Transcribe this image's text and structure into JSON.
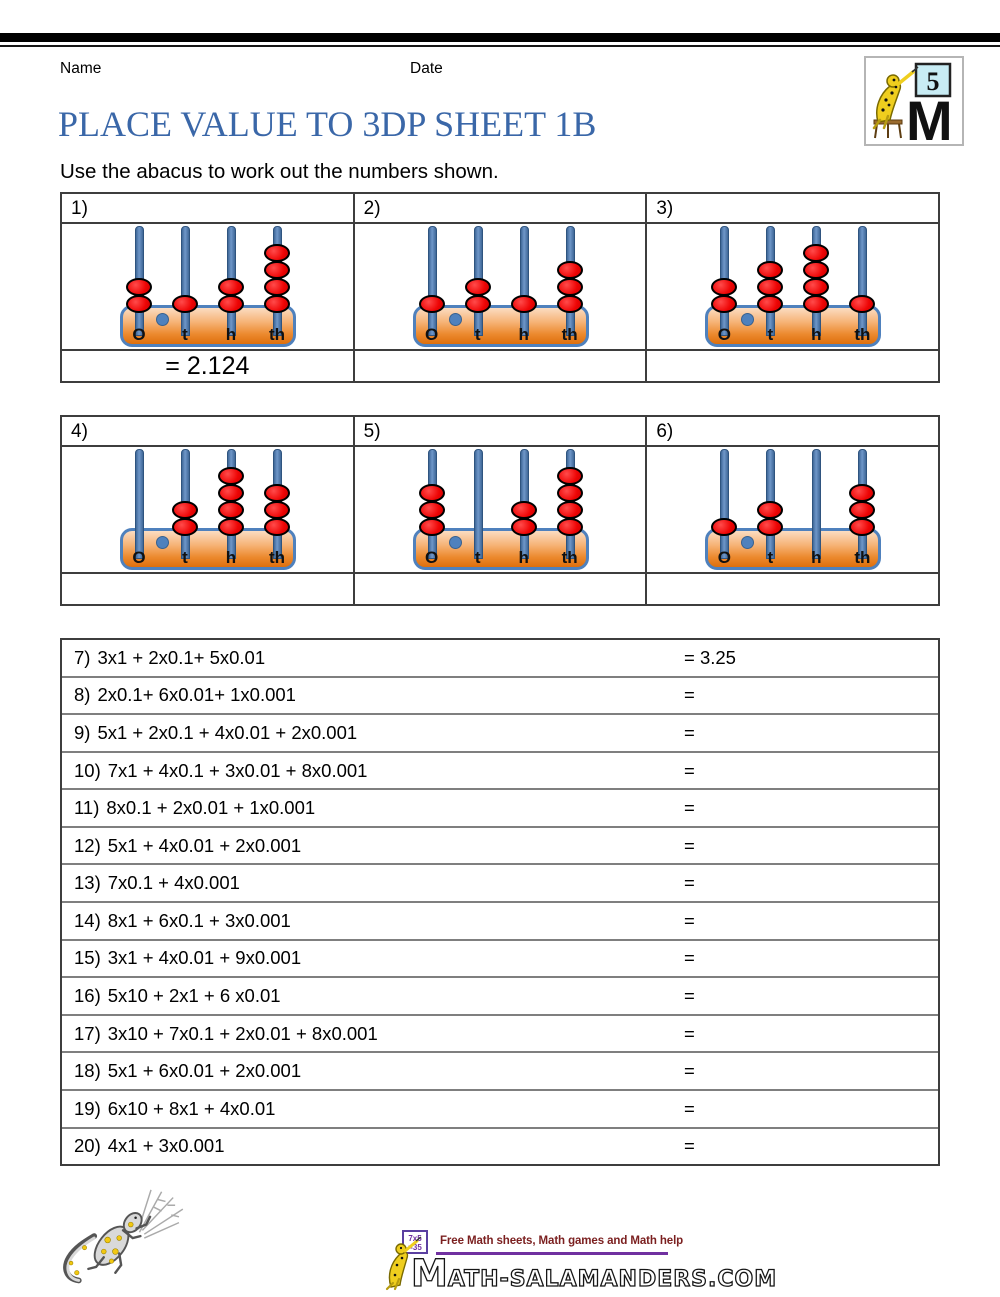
{
  "header": {
    "name_label": "Name",
    "date_label": "Date",
    "badge_number": "5"
  },
  "title": "PLACE VALUE TO 3DP SHEET 1B",
  "instruction": "Use the abacus to work out the numbers shown.",
  "abacus": {
    "column_labels": [
      "O",
      "t",
      "h",
      "th"
    ],
    "problems": [
      {
        "label": "1)",
        "beads": [
          2,
          1,
          2,
          4
        ],
        "answer": "= 2.124"
      },
      {
        "label": "2)",
        "beads": [
          1,
          2,
          1,
          3
        ],
        "answer": ""
      },
      {
        "label": "3)",
        "beads": [
          2,
          3,
          4,
          1
        ],
        "answer": ""
      },
      {
        "label": "4)",
        "beads": [
          0,
          2,
          4,
          3
        ],
        "answer": ""
      },
      {
        "label": "5)",
        "beads": [
          3,
          0,
          2,
          4
        ],
        "answer": ""
      },
      {
        "label": "6)",
        "beads": [
          1,
          2,
          0,
          3
        ],
        "answer": ""
      }
    ]
  },
  "equations": {
    "rows": [
      {
        "label": "7)",
        "expr": "3x1 + 2x0.1+ 5x0.01",
        "answer": "= 3.25"
      },
      {
        "label": "8)",
        "expr": "2x0.1+ 6x0.01+ 1x0.001",
        "answer": "="
      },
      {
        "label": "9)",
        "expr": "5x1 + 2x0.1 + 4x0.01 + 2x0.001",
        "answer": "="
      },
      {
        "label": "10)",
        "expr": "7x1 + 4x0.1 + 3x0.01 + 8x0.001",
        "answer": "="
      },
      {
        "label": "11)",
        "expr": "8x0.1 + 2x0.01 + 1x0.001",
        "answer": "="
      },
      {
        "label": "12)",
        "expr": "5x1 + 4x0.01 + 2x0.001",
        "answer": "="
      },
      {
        "label": "13)",
        "expr": "7x0.1 + 4x0.001",
        "answer": "="
      },
      {
        "label": "14)",
        "expr": "8x1 + 6x0.1 + 3x0.001",
        "answer": "="
      },
      {
        "label": "15)",
        "expr": "3x1 + 4x0.01 + 9x0.001",
        "answer": "="
      },
      {
        "label": "16)",
        "expr": "5x10 + 2x1 + 6 x0.01",
        "answer": "="
      },
      {
        "label": "17)",
        "expr": "3x10 + 7x0.1 + 2x0.01 + 8x0.001",
        "answer": "="
      },
      {
        "label": "18)",
        "expr": "5x1 + 6x0.01 + 2x0.001",
        "answer": "="
      },
      {
        "label": "19)",
        "expr": "6x10 + 8x1 + 4x0.01",
        "answer": "="
      },
      {
        "label": "20)",
        "expr": "4x1 + 3x0.001",
        "answer": "="
      }
    ]
  },
  "footer": {
    "board_line1": "7x5",
    "board_line2": "=35",
    "tagline": "Free Math sheets, Math games and Math help",
    "site_first_letter": "M",
    "site_rest": "ATH-SALAMANDERS.COM"
  },
  "colors": {
    "title": "#3A67A8",
    "bead_red": "#EE0505",
    "rod_blue": "#4F81BD",
    "base_orange": "#E67817",
    "tagline_maroon": "#7B2020",
    "rule_purple": "#7030A0"
  }
}
